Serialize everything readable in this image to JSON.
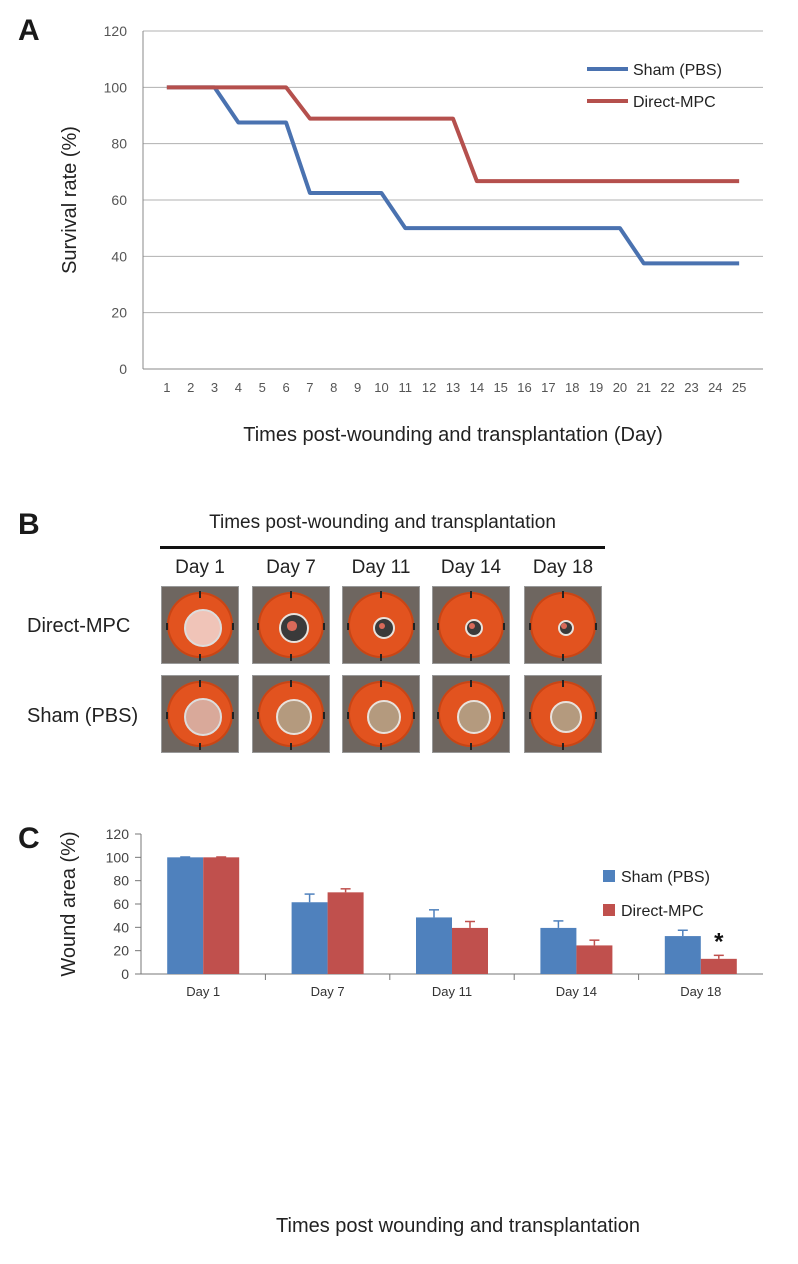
{
  "panel_a": {
    "letter": "A",
    "chart_data": {
      "type": "line",
      "title": "",
      "xlabel": "Times post-wounding and transplantation (Day)",
      "ylabel": "Survival rate (%)",
      "x": [
        1,
        2,
        3,
        4,
        5,
        6,
        7,
        8,
        9,
        10,
        11,
        12,
        13,
        14,
        15,
        16,
        17,
        18,
        19,
        20,
        21,
        22,
        23,
        24,
        25
      ],
      "xlim": [
        1,
        25
      ],
      "ylim": [
        0,
        120
      ],
      "yticks": [
        0,
        20,
        40,
        60,
        80,
        100,
        120
      ],
      "grid": true,
      "legend_position": "top-right",
      "series": [
        {
          "name": "Sham (PBS)",
          "color": "#4a72b0",
          "values": [
            100,
            100,
            100,
            87.5,
            87.5,
            87.5,
            62.5,
            62.5,
            62.5,
            62.5,
            50,
            50,
            50,
            50,
            50,
            50,
            50,
            50,
            50,
            50,
            37.5,
            37.5,
            37.5,
            37.5,
            37.5
          ]
        },
        {
          "name": "Direct-MPC",
          "color": "#b5504d",
          "values": [
            100,
            100,
            100,
            100,
            100,
            100,
            88.9,
            88.9,
            88.9,
            88.9,
            88.9,
            88.9,
            88.9,
            66.7,
            66.7,
            66.7,
            66.7,
            66.7,
            66.7,
            66.7,
            66.7,
            66.7,
            66.7,
            66.7,
            66.7
          ]
        }
      ]
    }
  },
  "panel_b": {
    "letter": "B",
    "title": "Times post-wounding and transplantation",
    "days": [
      "Day 1",
      "Day 7",
      "Day 11",
      "Day 14",
      "Day 18"
    ],
    "rows": [
      {
        "label": "Direct-MPC",
        "wound_color": "#f0c4b8"
      },
      {
        "label": "Sham (PBS)",
        "wound_color": "#d9a99a"
      }
    ]
  },
  "panel_c": {
    "letter": "C",
    "chart_data": {
      "type": "bar",
      "title": "",
      "xlabel": "Times post wounding and transplantation",
      "ylabel": "Wound area (%)",
      "categories": [
        "Day 1",
        "Day 7",
        "Day 11",
        "Day 14",
        "Day 18"
      ],
      "ylim": [
        0,
        120
      ],
      "yticks": [
        0,
        20,
        40,
        60,
        80,
        100,
        120
      ],
      "grid": false,
      "legend_position": "top-right",
      "series": [
        {
          "name": "Sham (PBS)",
          "color": "#4f81bd",
          "values": [
            100,
            61.5,
            48.5,
            39.5,
            32.5
          ],
          "errors": [
            0.3,
            7,
            6.5,
            6,
            5
          ]
        },
        {
          "name": "Direct-MPC",
          "color": "#c0504d",
          "values": [
            100,
            70,
            39.5,
            24.5,
            13
          ],
          "errors": [
            0.3,
            3,
            5.5,
            4.5,
            3
          ]
        }
      ],
      "annotations": [
        {
          "category": "Day 18",
          "series": "Direct-MPC",
          "text": "*"
        }
      ]
    }
  }
}
